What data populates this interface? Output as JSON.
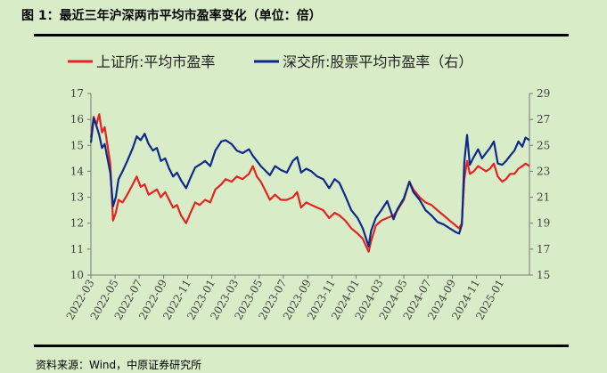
{
  "title": "图 1：最近三年沪深两市平均市盈率变化（单位：倍）",
  "source": "资料来源：Wind，中原证券研究所",
  "chart_data": {
    "type": "line",
    "title": "最近三年沪深两市平均市盈率变化（单位：倍）",
    "x_ticks": [
      "2022-03",
      "2022-05",
      "2022-07",
      "2022-09",
      "2022-11",
      "2023-01",
      "2023-03",
      "2023-05",
      "2023-07",
      "2023-09",
      "2023-11",
      "2024-01",
      "2024-03",
      "2024-05",
      "2024-07",
      "2024-09",
      "2024-11",
      "2025-01"
    ],
    "x_range": [
      "2022-03-01",
      "2025-03-15"
    ],
    "y_left": {
      "ticks": [
        10,
        11,
        12,
        13,
        14,
        15,
        16,
        17
      ],
      "range": [
        10,
        17
      ]
    },
    "y_right": {
      "ticks": [
        15,
        17,
        19,
        21,
        23,
        25,
        27,
        29
      ],
      "range": [
        15,
        29
      ]
    },
    "legend_position": "top",
    "colors": {
      "sse": "#e32422",
      "szse": "#0d2a8a"
    },
    "series": [
      {
        "name": "上证所:平均市盈率",
        "axis": "left",
        "color": "#e32422",
        "points": [
          [
            "2022-03-01",
            15.3
          ],
          [
            "2022-03-08",
            16.1
          ],
          [
            "2022-03-15",
            15.8
          ],
          [
            "2022-03-22",
            16.2
          ],
          [
            "2022-03-29",
            15.5
          ],
          [
            "2022-04-05",
            15.7
          ],
          [
            "2022-04-12",
            15.0
          ],
          [
            "2022-04-19",
            14.3
          ],
          [
            "2022-04-26",
            12.1
          ],
          [
            "2022-05-03",
            12.4
          ],
          [
            "2022-05-10",
            12.9
          ],
          [
            "2022-05-20",
            12.8
          ],
          [
            "2022-06-01",
            13.1
          ],
          [
            "2022-06-15",
            13.5
          ],
          [
            "2022-06-25",
            13.8
          ],
          [
            "2022-07-05",
            13.4
          ],
          [
            "2022-07-15",
            13.5
          ],
          [
            "2022-07-25",
            13.1
          ],
          [
            "2022-08-05",
            13.2
          ],
          [
            "2022-08-15",
            13.3
          ],
          [
            "2022-08-25",
            13.0
          ],
          [
            "2022-09-05",
            13.2
          ],
          [
            "2022-09-15",
            12.9
          ],
          [
            "2022-09-25",
            12.6
          ],
          [
            "2022-10-05",
            12.7
          ],
          [
            "2022-10-15",
            12.3
          ],
          [
            "2022-10-28",
            12.0
          ],
          [
            "2022-11-08",
            12.4
          ],
          [
            "2022-11-20",
            12.8
          ],
          [
            "2022-12-01",
            12.7
          ],
          [
            "2022-12-15",
            12.9
          ],
          [
            "2022-12-28",
            12.8
          ],
          [
            "2023-01-10",
            13.3
          ],
          [
            "2023-01-25",
            13.5
          ],
          [
            "2023-02-05",
            13.7
          ],
          [
            "2023-02-20",
            13.6
          ],
          [
            "2023-03-05",
            13.8
          ],
          [
            "2023-03-20",
            13.7
          ],
          [
            "2023-04-05",
            13.9
          ],
          [
            "2023-04-15",
            14.2
          ],
          [
            "2023-04-25",
            13.8
          ],
          [
            "2023-05-05",
            13.6
          ],
          [
            "2023-05-15",
            13.3
          ],
          [
            "2023-05-28",
            12.9
          ],
          [
            "2023-06-10",
            13.1
          ],
          [
            "2023-06-25",
            12.9
          ],
          [
            "2023-07-10",
            12.9
          ],
          [
            "2023-07-25",
            13.0
          ],
          [
            "2023-08-05",
            13.2
          ],
          [
            "2023-08-15",
            12.6
          ],
          [
            "2023-08-28",
            12.8
          ],
          [
            "2023-09-10",
            12.7
          ],
          [
            "2023-09-25",
            12.6
          ],
          [
            "2023-10-10",
            12.5
          ],
          [
            "2023-10-25",
            12.2
          ],
          [
            "2023-11-08",
            12.4
          ],
          [
            "2023-11-20",
            12.3
          ],
          [
            "2023-12-05",
            12.1
          ],
          [
            "2023-12-20",
            11.8
          ],
          [
            "2024-01-05",
            11.6
          ],
          [
            "2024-01-18",
            11.4
          ],
          [
            "2024-02-02",
            10.9
          ],
          [
            "2024-02-08",
            11.3
          ],
          [
            "2024-02-20",
            11.9
          ],
          [
            "2024-03-05",
            12.1
          ],
          [
            "2024-03-20",
            12.2
          ],
          [
            "2024-04-05",
            12.3
          ],
          [
            "2024-04-15",
            12.5
          ],
          [
            "2024-05-01",
            12.9
          ],
          [
            "2024-05-15",
            13.6
          ],
          [
            "2024-05-25",
            13.3
          ],
          [
            "2024-06-10",
            13.0
          ],
          [
            "2024-06-25",
            12.8
          ],
          [
            "2024-07-10",
            12.7
          ],
          [
            "2024-07-25",
            12.5
          ],
          [
            "2024-08-10",
            12.3
          ],
          [
            "2024-08-25",
            12.1
          ],
          [
            "2024-09-10",
            11.9
          ],
          [
            "2024-09-18",
            11.8
          ],
          [
            "2024-09-25",
            12.0
          ],
          [
            "2024-10-01",
            13.7
          ],
          [
            "2024-10-08",
            14.4
          ],
          [
            "2024-10-15",
            13.9
          ],
          [
            "2024-10-25",
            14.0
          ],
          [
            "2024-11-05",
            14.2
          ],
          [
            "2024-11-15",
            14.1
          ],
          [
            "2024-11-25",
            14.0
          ],
          [
            "2024-12-05",
            14.1
          ],
          [
            "2024-12-15",
            14.3
          ],
          [
            "2024-12-25",
            13.8
          ],
          [
            "2025-01-05",
            13.6
          ],
          [
            "2025-01-15",
            13.7
          ],
          [
            "2025-01-25",
            13.9
          ],
          [
            "2025-02-05",
            13.9
          ],
          [
            "2025-02-15",
            14.1
          ],
          [
            "2025-02-25",
            14.2
          ],
          [
            "2025-03-05",
            14.3
          ],
          [
            "2025-03-15",
            14.2
          ]
        ]
      },
      {
        "name": "深交所:股票平均市盈率（右）",
        "axis": "right",
        "color": "#0d2a8a",
        "points": [
          [
            "2022-03-01",
            25.2
          ],
          [
            "2022-03-08",
            27.1
          ],
          [
            "2022-03-15",
            26.5
          ],
          [
            "2022-03-22",
            25.8
          ],
          [
            "2022-03-29",
            24.8
          ],
          [
            "2022-04-05",
            25.1
          ],
          [
            "2022-04-12",
            24.0
          ],
          [
            "2022-04-19",
            22.9
          ],
          [
            "2022-04-26",
            20.3
          ],
          [
            "2022-05-03",
            21.0
          ],
          [
            "2022-05-10",
            22.4
          ],
          [
            "2022-05-20",
            23.0
          ],
          [
            "2022-06-01",
            23.8
          ],
          [
            "2022-06-15",
            24.8
          ],
          [
            "2022-06-25",
            25.7
          ],
          [
            "2022-07-05",
            25.4
          ],
          [
            "2022-07-15",
            25.9
          ],
          [
            "2022-07-25",
            25.1
          ],
          [
            "2022-08-05",
            24.6
          ],
          [
            "2022-08-15",
            24.8
          ],
          [
            "2022-08-25",
            23.8
          ],
          [
            "2022-09-05",
            24.0
          ],
          [
            "2022-09-15",
            23.2
          ],
          [
            "2022-09-25",
            22.6
          ],
          [
            "2022-10-05",
            22.9
          ],
          [
            "2022-10-15",
            22.3
          ],
          [
            "2022-10-28",
            21.7
          ],
          [
            "2022-11-08",
            22.5
          ],
          [
            "2022-11-20",
            23.3
          ],
          [
            "2022-12-01",
            23.5
          ],
          [
            "2022-12-15",
            23.8
          ],
          [
            "2022-12-28",
            23.4
          ],
          [
            "2023-01-10",
            24.6
          ],
          [
            "2023-01-25",
            25.3
          ],
          [
            "2023-02-05",
            25.4
          ],
          [
            "2023-02-20",
            25.1
          ],
          [
            "2023-03-05",
            24.6
          ],
          [
            "2023-03-20",
            24.4
          ],
          [
            "2023-04-05",
            24.7
          ],
          [
            "2023-04-15",
            24.2
          ],
          [
            "2023-04-25",
            23.8
          ],
          [
            "2023-05-05",
            23.4
          ],
          [
            "2023-05-15",
            23.1
          ],
          [
            "2023-05-28",
            22.7
          ],
          [
            "2023-06-10",
            23.4
          ],
          [
            "2023-06-25",
            23.1
          ],
          [
            "2023-07-10",
            22.9
          ],
          [
            "2023-07-25",
            23.8
          ],
          [
            "2023-08-05",
            24.1
          ],
          [
            "2023-08-15",
            22.9
          ],
          [
            "2023-08-28",
            23.2
          ],
          [
            "2023-09-10",
            23.0
          ],
          [
            "2023-09-25",
            22.6
          ],
          [
            "2023-10-10",
            22.4
          ],
          [
            "2023-10-25",
            21.7
          ],
          [
            "2023-11-08",
            22.4
          ],
          [
            "2023-11-20",
            22.1
          ],
          [
            "2023-12-05",
            21.1
          ],
          [
            "2023-12-20",
            20.0
          ],
          [
            "2024-01-05",
            19.4
          ],
          [
            "2024-01-18",
            18.6
          ],
          [
            "2024-02-02",
            17.2
          ],
          [
            "2024-02-08",
            18.4
          ],
          [
            "2024-02-20",
            19.4
          ],
          [
            "2024-03-05",
            20.0
          ],
          [
            "2024-03-20",
            20.7
          ],
          [
            "2024-04-05",
            19.3
          ],
          [
            "2024-04-15",
            20.1
          ],
          [
            "2024-05-01",
            20.9
          ],
          [
            "2024-05-15",
            22.2
          ],
          [
            "2024-05-25",
            21.4
          ],
          [
            "2024-06-10",
            20.8
          ],
          [
            "2024-06-25",
            20.0
          ],
          [
            "2024-07-10",
            19.6
          ],
          [
            "2024-07-25",
            19.1
          ],
          [
            "2024-08-10",
            18.9
          ],
          [
            "2024-08-25",
            18.6
          ],
          [
            "2024-09-10",
            18.3
          ],
          [
            "2024-09-18",
            18.2
          ],
          [
            "2024-09-25",
            18.9
          ],
          [
            "2024-10-01",
            23.7
          ],
          [
            "2024-10-08",
            25.8
          ],
          [
            "2024-10-15",
            23.5
          ],
          [
            "2024-10-25",
            24.1
          ],
          [
            "2024-11-05",
            24.7
          ],
          [
            "2024-11-15",
            24.0
          ],
          [
            "2024-11-25",
            24.4
          ],
          [
            "2024-12-05",
            24.8
          ],
          [
            "2024-12-15",
            25.3
          ],
          [
            "2024-12-25",
            23.6
          ],
          [
            "2025-01-05",
            23.5
          ],
          [
            "2025-01-15",
            23.8
          ],
          [
            "2025-01-25",
            24.2
          ],
          [
            "2025-02-05",
            24.6
          ],
          [
            "2025-02-15",
            25.3
          ],
          [
            "2025-02-25",
            24.9
          ],
          [
            "2025-03-05",
            25.6
          ],
          [
            "2025-03-15",
            25.4
          ]
        ]
      }
    ]
  }
}
